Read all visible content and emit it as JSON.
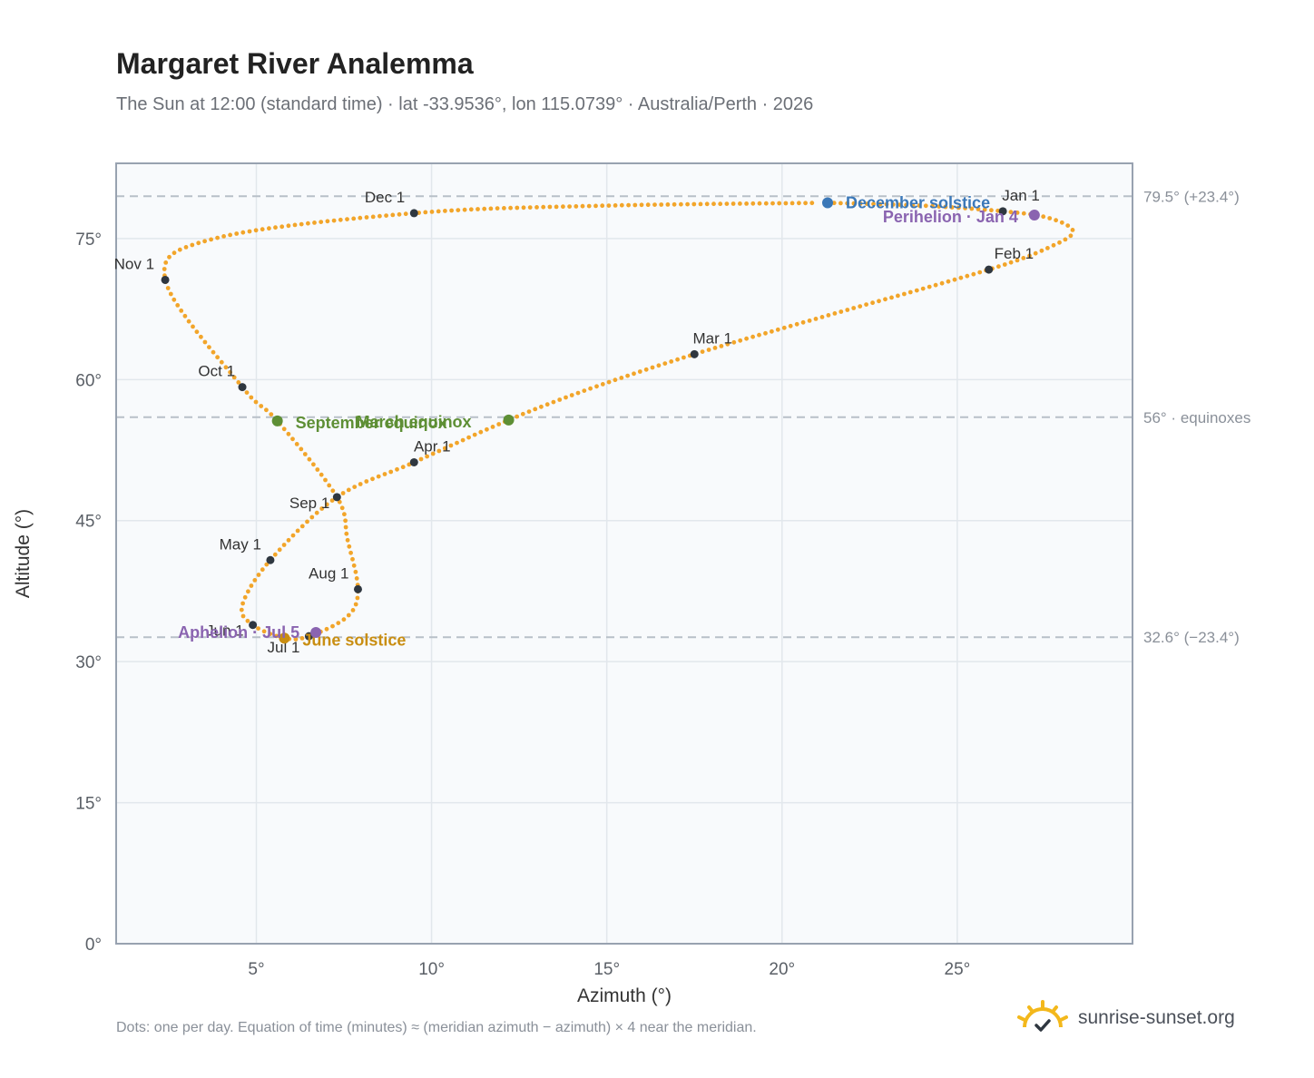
{
  "header": {
    "title": "Margaret River Analemma",
    "subtitle": "The Sun at 12:00 (standard time) · lat -33.9536°, lon 115.0739° · Australia/Perth · 2026"
  },
  "footer": {
    "note": "Dots: one per day. Equation of time (minutes) ≈ (meridian azimuth − azimuth) × 4 near the meridian.",
    "brand": "sunrise-sunset.org"
  },
  "colors": {
    "curve": "#f2a52a",
    "month_marker": "#2f3740",
    "solstice_december": "#3b78b8",
    "solstice_june": "#c98e12",
    "equinox": "#5e8f35",
    "apsis": "#8a64b0",
    "reference_line": "#b8c0c8",
    "plot_bg": "#f8fafc",
    "plot_border": "#98a2b0",
    "grid": "#e2e7ec"
  },
  "chart_data": {
    "type": "scatter",
    "xlabel": "Azimuth (°)",
    "ylabel": "Altitude (°)",
    "xlim": [
      1,
      30
    ],
    "ylim": [
      0,
      83
    ],
    "x_ticks": [
      5,
      10,
      15,
      20,
      25
    ],
    "x_tick_labels": [
      "5°",
      "10°",
      "15°",
      "20°",
      "25°"
    ],
    "y_ticks": [
      0,
      15,
      30,
      45,
      60,
      75
    ],
    "y_tick_labels": [
      "0°",
      "15°",
      "30°",
      "45°",
      "60°",
      "75°"
    ],
    "grid": true,
    "reference_lines": [
      {
        "y": 79.5,
        "label": "79.5° (+23.4°)"
      },
      {
        "y": 56.0,
        "label": "56° · equinoxes"
      },
      {
        "y": 32.6,
        "label": "32.6° (−23.4°)"
      }
    ],
    "month_markers": [
      {
        "label": "Jan 1",
        "az": 26.3,
        "alt": 77.9
      },
      {
        "label": "Feb 1",
        "az": 25.9,
        "alt": 71.7
      },
      {
        "label": "Mar 1",
        "az": 17.5,
        "alt": 62.7
      },
      {
        "label": "Apr 1",
        "az": 9.5,
        "alt": 51.2
      },
      {
        "label": "May 1",
        "az": 5.4,
        "alt": 40.8
      },
      {
        "label": "Jun 1",
        "az": 4.9,
        "alt": 33.9
      },
      {
        "label": "Jul 1",
        "az": 6.5,
        "alt": 32.7
      },
      {
        "label": "Aug 1",
        "az": 7.9,
        "alt": 37.7
      },
      {
        "label": "Sep 1",
        "az": 7.3,
        "alt": 47.5
      },
      {
        "label": "Oct 1",
        "az": 4.6,
        "alt": 59.2
      },
      {
        "label": "Nov 1",
        "az": 2.4,
        "alt": 70.6
      },
      {
        "label": "Dec 1",
        "az": 9.5,
        "alt": 77.7
      }
    ],
    "events": [
      {
        "label": "December solstice",
        "az": 21.3,
        "alt": 78.8,
        "kind": "solstice_december"
      },
      {
        "label": "Perihelion · Jan 4",
        "az": 27.2,
        "alt": 77.5,
        "kind": "apsis"
      },
      {
        "label": "March equinox",
        "az": 12.2,
        "alt": 55.7,
        "kind": "equinox"
      },
      {
        "label": "September equinox",
        "az": 5.6,
        "alt": 55.6,
        "kind": "equinox"
      },
      {
        "label": "June solstice",
        "az": 5.8,
        "alt": 32.5,
        "kind": "solstice_june"
      },
      {
        "label": "Aphelion · Jul 5",
        "az": 6.7,
        "alt": 33.1,
        "kind": "apsis"
      }
    ],
    "curve_path_keypoints": [
      {
        "az": 21.3,
        "alt": 78.8
      },
      {
        "az": 24.0,
        "alt": 78.5
      },
      {
        "az": 26.3,
        "alt": 77.9
      },
      {
        "az": 27.6,
        "alt": 77.2
      },
      {
        "az": 28.3,
        "alt": 75.8
      },
      {
        "az": 27.7,
        "alt": 74.2
      },
      {
        "az": 25.9,
        "alt": 71.7
      },
      {
        "az": 21.0,
        "alt": 66.5
      },
      {
        "az": 17.5,
        "alt": 62.7
      },
      {
        "az": 14.5,
        "alt": 59.0
      },
      {
        "az": 12.2,
        "alt": 55.7
      },
      {
        "az": 9.5,
        "alt": 51.2
      },
      {
        "az": 7.3,
        "alt": 47.5
      },
      {
        "az": 5.4,
        "alt": 40.8
      },
      {
        "az": 4.6,
        "alt": 36.0
      },
      {
        "az": 4.9,
        "alt": 33.9
      },
      {
        "az": 5.8,
        "alt": 32.5
      },
      {
        "az": 6.5,
        "alt": 32.7
      },
      {
        "az": 7.6,
        "alt": 34.8
      },
      {
        "az": 7.9,
        "alt": 37.7
      },
      {
        "az": 7.6,
        "alt": 43.0
      },
      {
        "az": 7.3,
        "alt": 47.5
      },
      {
        "az": 5.6,
        "alt": 55.6
      },
      {
        "az": 4.6,
        "alt": 59.2
      },
      {
        "az": 2.4,
        "alt": 70.6
      },
      {
        "az": 3.8,
        "alt": 75.0
      },
      {
        "az": 9.5,
        "alt": 77.7
      },
      {
        "az": 15.0,
        "alt": 78.5
      },
      {
        "az": 21.3,
        "alt": 78.8
      }
    ]
  }
}
